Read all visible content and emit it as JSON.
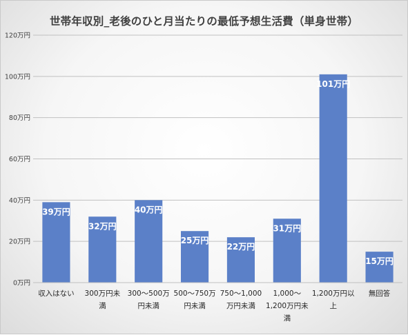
{
  "chart_data": {
    "type": "bar",
    "title": "世帯年収別_老後のひと月当たりの最低予想生活費（単身世帯）",
    "xlabel": "",
    "ylabel": "",
    "categories": [
      [
        "収入はない"
      ],
      [
        "300万円未",
        "満"
      ],
      [
        "300～500万",
        "円未満"
      ],
      [
        "500～750万",
        "円未満"
      ],
      [
        "750～1,000",
        "万円未満"
      ],
      [
        "1,000～",
        "1,200万円未",
        "満"
      ],
      [
        "1,200万円以",
        "上"
      ],
      [
        "無回答"
      ]
    ],
    "values": [
      39,
      32,
      40,
      25,
      22,
      31,
      101,
      15
    ],
    "data_labels": [
      "39万円",
      "32万円",
      "40万円",
      "25万円",
      "22万円",
      "31万円",
      "101万円",
      "15万円"
    ],
    "ylim": [
      0,
      120
    ],
    "yticks": [
      0,
      20,
      40,
      60,
      80,
      100,
      120
    ],
    "ytick_labels": [
      "0万円",
      "20万円",
      "40万円",
      "60万円",
      "80万円",
      "100万円",
      "120万円"
    ],
    "grid": true,
    "legend": "none",
    "bar_color": "#5b80c8",
    "grid_color": "#c0c0c0"
  }
}
